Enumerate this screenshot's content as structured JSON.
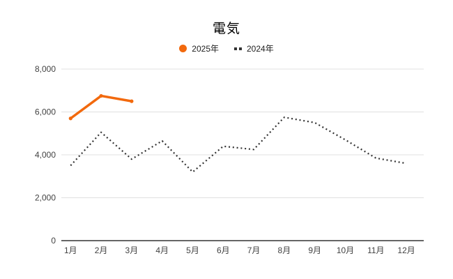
{
  "chart_data": {
    "type": "line",
    "title": "電気",
    "categories": [
      "1月",
      "2月",
      "3月",
      "4月",
      "5月",
      "6月",
      "7月",
      "8月",
      "9月",
      "10月",
      "11月",
      "12月"
    ],
    "series": [
      {
        "name": "2025年",
        "color": "#F2690D",
        "line_style": "solid",
        "values": [
          5700,
          6750,
          6500,
          null,
          null,
          null,
          null,
          null,
          null,
          null,
          null,
          null
        ]
      },
      {
        "name": "2024年",
        "color": "#333333",
        "line_style": "dotted",
        "values": [
          3500,
          5050,
          3800,
          4650,
          3200,
          4400,
          4250,
          5750,
          5500,
          4700,
          3850,
          3600
        ]
      }
    ],
    "xlabel": "",
    "ylabel": "",
    "ylim": [
      0,
      8000
    ],
    "yticks": [
      0,
      2000,
      4000,
      6000,
      8000
    ],
    "ytick_labels": [
      "0",
      "2,000",
      "4,000",
      "6,000",
      "8,000"
    ],
    "grid": true,
    "legend_position": "top",
    "colors": {
      "background": "#ffffff",
      "gridline": "#E0E0E0",
      "axis_baseline": "#333333",
      "tick_label": "#424242",
      "title": "#000000",
      "legend_text": "#212121"
    }
  }
}
